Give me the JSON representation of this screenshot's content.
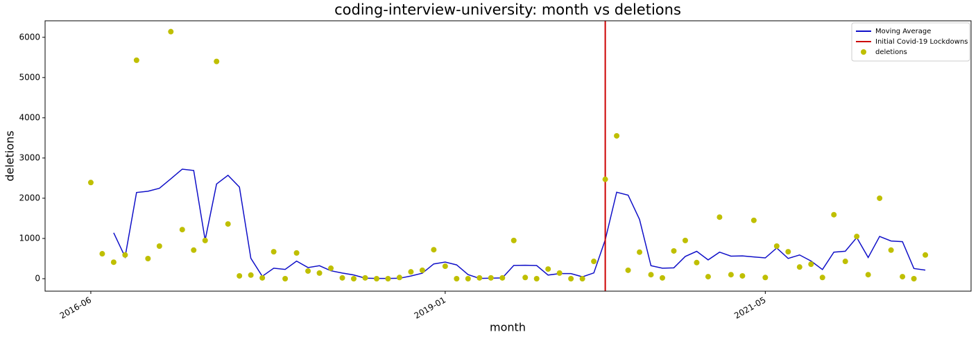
{
  "chart_data": {
    "type": "line",
    "title": "coding-interview-university: month vs deletions",
    "x_label": "month",
    "y_label": "deletions",
    "x": [
      "2016-06",
      "2016-07",
      "2016-08",
      "2016-09",
      "2016-10",
      "2016-11",
      "2016-12",
      "2017-01",
      "2017-02",
      "2017-03",
      "2017-04",
      "2017-05",
      "2017-06",
      "2017-07",
      "2017-08",
      "2017-09",
      "2017-10",
      "2017-11",
      "2017-12",
      "2018-01",
      "2018-02",
      "2018-03",
      "2018-04",
      "2018-05",
      "2018-06",
      "2018-07",
      "2018-08",
      "2018-09",
      "2018-10",
      "2018-11",
      "2018-12",
      "2019-01",
      "2019-02",
      "2019-03",
      "2019-04",
      "2019-05",
      "2019-06",
      "2019-07",
      "2019-08",
      "2019-09",
      "2019-10",
      "2019-11",
      "2019-12",
      "2020-01",
      "2020-02",
      "2020-03",
      "2020-04",
      "2020-05",
      "2020-06",
      "2020-07",
      "2020-08",
      "2020-09",
      "2020-10",
      "2020-11",
      "2020-12",
      "2021-01",
      "2021-02",
      "2021-03",
      "2021-04",
      "2021-05",
      "2021-06",
      "2021-07",
      "2021-08",
      "2021-09",
      "2021-10",
      "2021-11",
      "2021-12",
      "2022-01",
      "2022-02",
      "2022-03",
      "2022-04",
      "2022-05",
      "2022-06",
      "2022-07"
    ],
    "series": [
      {
        "name": "Moving Average",
        "kind": "line",
        "color": "#0f0fc8",
        "values": [
          null,
          null,
          1140,
          540,
          2143,
          2173,
          2247,
          2483,
          2723,
          2690,
          960,
          2353,
          2570,
          2277,
          507,
          60,
          260,
          230,
          437,
          277,
          323,
          197,
          140,
          93,
          13,
          7,
          7,
          10,
          67,
          137,
          367,
          413,
          343,
          103,
          7,
          13,
          20,
          330,
          333,
          327,
          90,
          127,
          127,
          47,
          143,
          967,
          2150,
          2077,
          1473,
          323,
          260,
          270,
          553,
          680,
          467,
          660,
          560,
          567,
          540,
          517,
          763,
          503,
          590,
          440,
          227,
          660,
          683,
          1023,
          527,
          1050,
          937,
          920,
          253,
          213
        ]
      },
      {
        "name": "deletions",
        "kind": "scatter",
        "color": "#bfbf00",
        "values": [
          2390,
          620,
          410,
          590,
          5430,
          500,
          810,
          6140,
          1220,
          710,
          950,
          5400,
          1360,
          70,
          90,
          20,
          670,
          0,
          640,
          190,
          140,
          260,
          20,
          0,
          20,
          0,
          0,
          30,
          170,
          210,
          720,
          310,
          0,
          0,
          20,
          20,
          20,
          950,
          30,
          0,
          240,
          140,
          0,
          0,
          430,
          2470,
          3550,
          210,
          660,
          100,
          20,
          690,
          950,
          400,
          50,
          1530,
          100,
          70,
          1450,
          30,
          810,
          670,
          290,
          360,
          30,
          1590,
          430,
          1050,
          100,
          2000,
          710,
          50,
          0,
          590
        ]
      }
    ],
    "vlines": [
      {
        "name": "Initial Covid-19 Lockdowns",
        "x": "2020-03",
        "color": "#cc0000"
      }
    ],
    "xlim": [
      "2016-02",
      "2022-11"
    ],
    "xticks": [
      "2016-06",
      "2019-01",
      "2021-05"
    ],
    "ylim": [
      -310,
      6410
    ],
    "yticks": [
      0,
      1000,
      2000,
      3000,
      4000,
      5000,
      6000
    ],
    "grid": false,
    "legend": "upper right"
  }
}
